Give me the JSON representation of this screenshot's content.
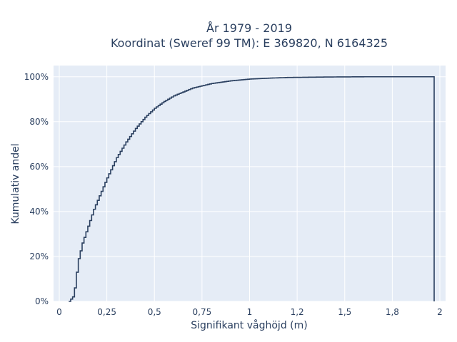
{
  "chart_data": {
    "type": "line",
    "line_shape": "step",
    "title_lines": [
      "År 1979 - 2019",
      "Koordinat (Sweref 99 TM): E 369820, N 6164325"
    ],
    "xlabel": "Signifikant våghöjd (m)",
    "ylabel": "Kumulativ andel",
    "xlim": [
      -0.03,
      2.03
    ],
    "ylim": [
      0,
      1.05
    ],
    "x_ticks": [
      0,
      0.25,
      0.5,
      0.75,
      1,
      1.25,
      1.5,
      1.75,
      2
    ],
    "x_tick_labels": [
      "0",
      "0,25",
      "0,5",
      "0,75",
      "1",
      "1,2",
      "1,5",
      "1,8",
      "2"
    ],
    "y_ticks": [
      0,
      0.2,
      0.4,
      0.6,
      0.8,
      1.0
    ],
    "y_tick_labels": [
      "0%",
      "20%",
      "40%",
      "60%",
      "80%",
      "100%"
    ],
    "grid": true,
    "plot_background": "#e5ecf6",
    "grid_color": "#ffffff",
    "line_color": "#2a3f5f",
    "series": [
      {
        "x": [
          0.05,
          0.07,
          0.08,
          0.09,
          0.1,
          0.12,
          0.14,
          0.16,
          0.18,
          0.2,
          0.22,
          0.25,
          0.3,
          0.35,
          0.4,
          0.45,
          0.5,
          0.55,
          0.6,
          0.7,
          0.8,
          0.9,
          1.0,
          1.1,
          1.2,
          1.3,
          1.4,
          1.6,
          1.8,
          1.97,
          1.97
        ],
        "y": [
          0.0,
          0.02,
          0.06,
          0.13,
          0.19,
          0.26,
          0.31,
          0.36,
          0.41,
          0.45,
          0.49,
          0.55,
          0.64,
          0.71,
          0.77,
          0.82,
          0.86,
          0.89,
          0.915,
          0.95,
          0.97,
          0.982,
          0.99,
          0.994,
          0.997,
          0.998,
          0.999,
          1.0,
          1.0,
          1.0,
          0.0
        ]
      }
    ]
  }
}
